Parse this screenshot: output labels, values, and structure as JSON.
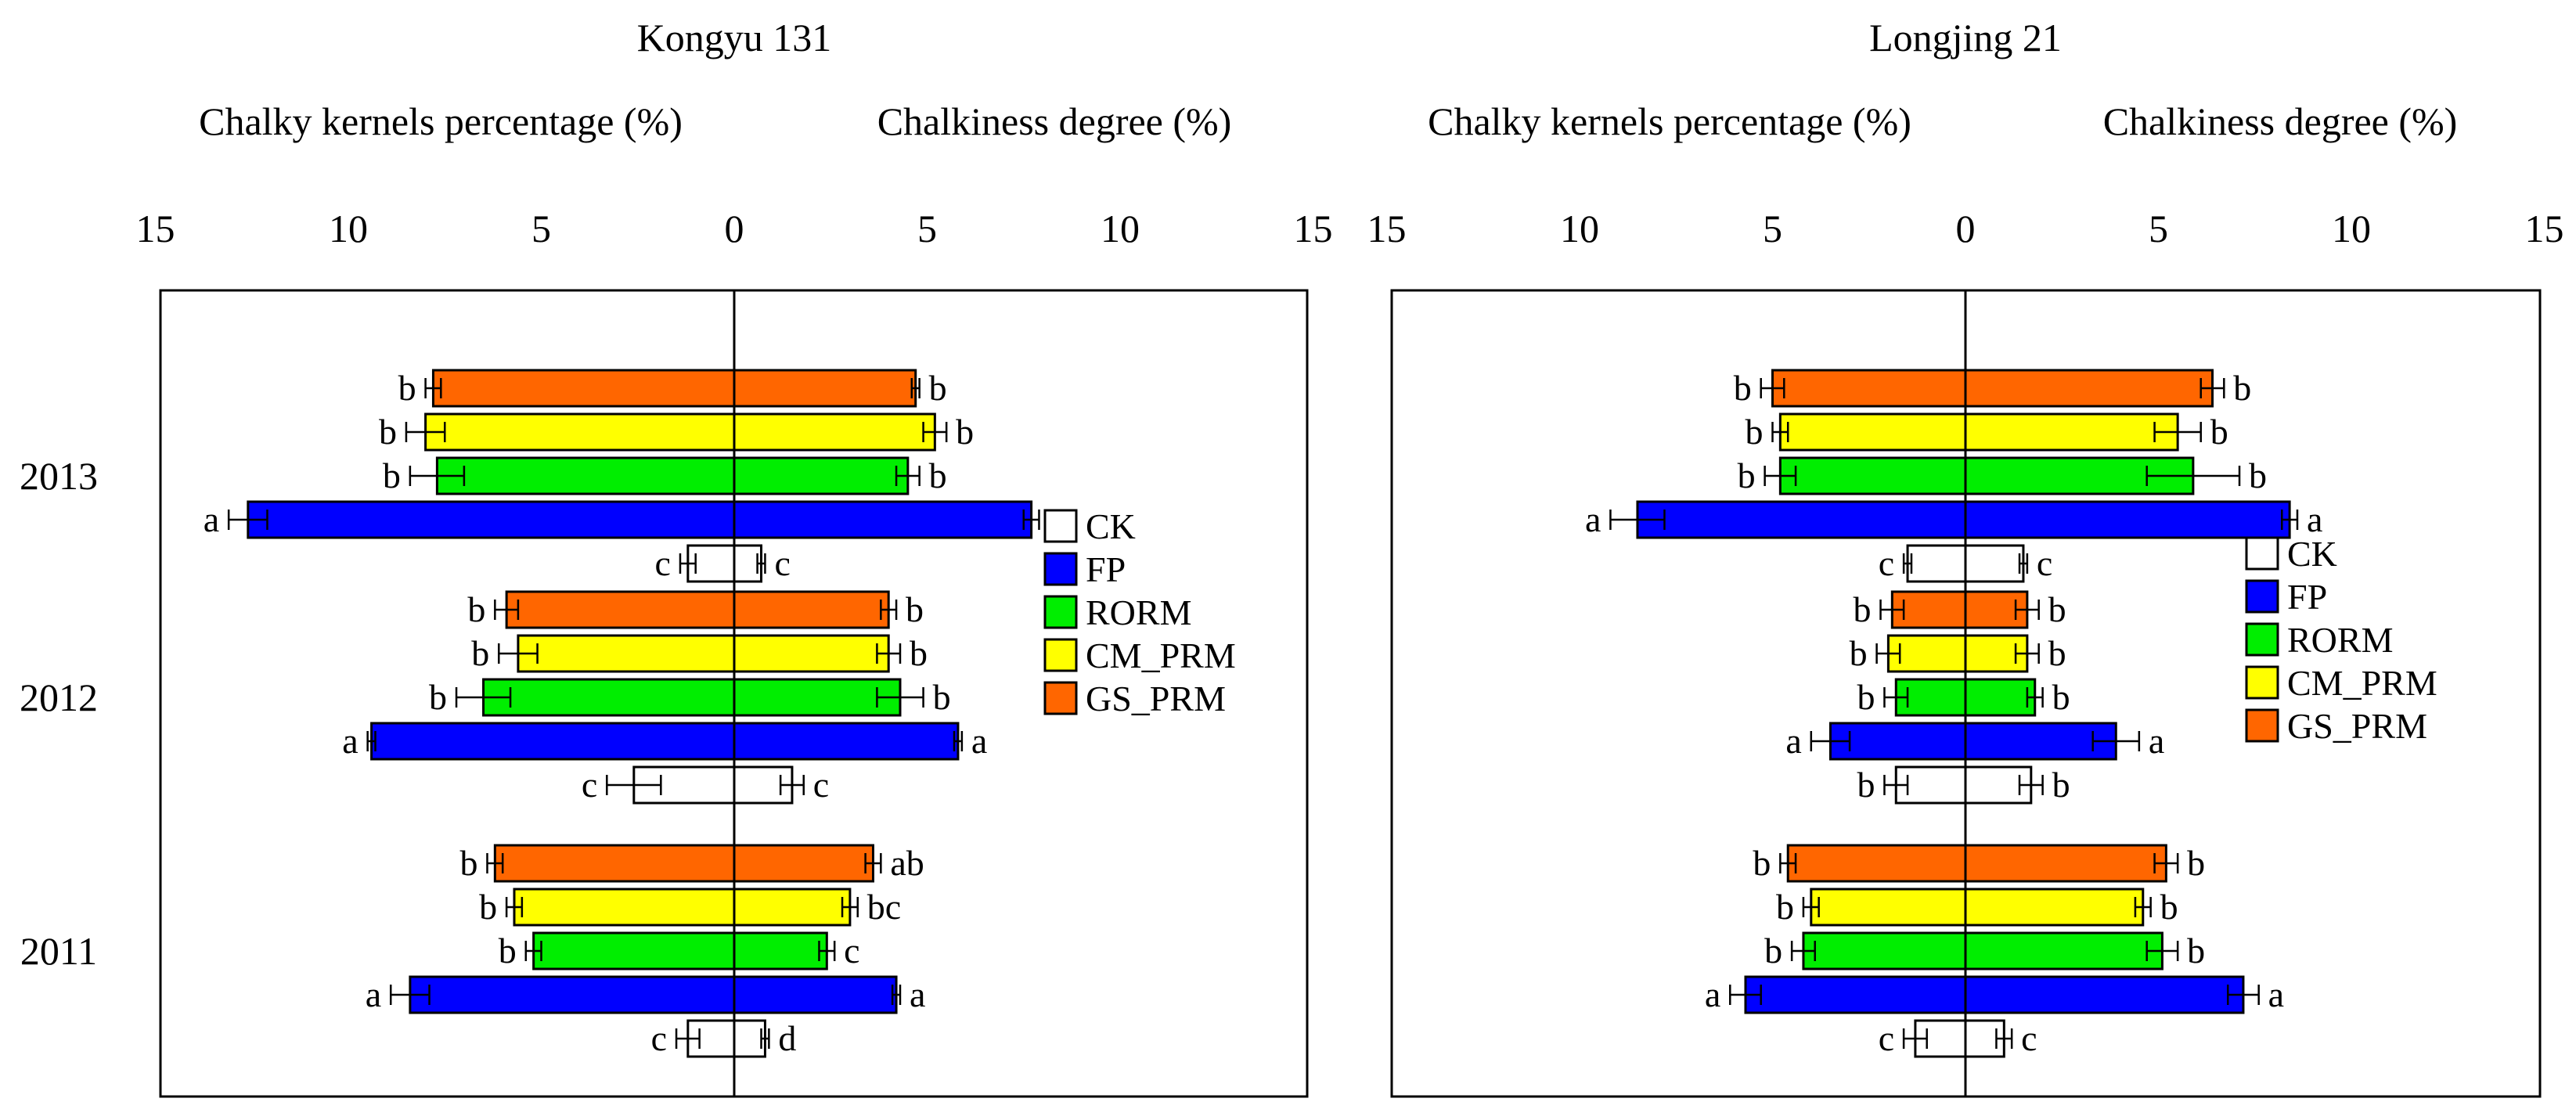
{
  "figure": {
    "legend": {
      "items": [
        {
          "key": "CK",
          "label": "CK",
          "color": "#ffffff"
        },
        {
          "key": "FP",
          "label": "FP",
          "color": "#0000ff"
        },
        {
          "key": "RORM",
          "label": "RORM",
          "color": "#00ee00"
        },
        {
          "key": "CM_PRM",
          "label": "CM_PRM",
          "color": "#ffff00"
        },
        {
          "key": "GS_PRM",
          "label": "GS_PRM",
          "color": "#ff6600"
        }
      ]
    }
  },
  "chart_data": [
    {
      "type": "bar",
      "orientation": "horizontal-butterfly",
      "title": "Kongyu 131",
      "left_axis_label": "Chalky kernels percentage (%)",
      "right_axis_label": "Chalkiness degree (%)",
      "xlim": [
        -15,
        15
      ],
      "ticks": [
        15,
        10,
        5,
        0,
        5,
        10,
        15
      ],
      "groups": [
        {
          "year": "2013",
          "bars": [
            {
              "treatment": "GS_PRM",
              "left": 7.8,
              "left_err": 0.2,
              "left_sig": "b",
              "right": 4.7,
              "right_err": 0.1,
              "right_sig": "b"
            },
            {
              "treatment": "CM_PRM",
              "left": 8.0,
              "left_err": 0.5,
              "left_sig": "b",
              "right": 5.2,
              "right_err": 0.3,
              "right_sig": "b"
            },
            {
              "treatment": "RORM",
              "left": 7.7,
              "left_err": 0.7,
              "left_sig": "b",
              "right": 4.5,
              "right_err": 0.3,
              "right_sig": "b"
            },
            {
              "treatment": "FP",
              "left": 12.6,
              "left_err": 0.5,
              "left_sig": "a",
              "right": 7.7,
              "right_err": 0.2,
              "right_sig": "a"
            },
            {
              "treatment": "CK",
              "left": 1.2,
              "left_err": 0.2,
              "left_sig": "c",
              "right": 0.7,
              "right_err": 0.1,
              "right_sig": "c"
            }
          ]
        },
        {
          "year": "2012",
          "bars": [
            {
              "treatment": "GS_PRM",
              "left": 5.9,
              "left_err": 0.3,
              "left_sig": "b",
              "right": 4.0,
              "right_err": 0.2,
              "right_sig": "b"
            },
            {
              "treatment": "CM_PRM",
              "left": 5.6,
              "left_err": 0.5,
              "left_sig": "b",
              "right": 4.0,
              "right_err": 0.3,
              "right_sig": "b"
            },
            {
              "treatment": "RORM",
              "left": 6.5,
              "left_err": 0.7,
              "left_sig": "b",
              "right": 4.3,
              "right_err": 0.6,
              "right_sig": "b"
            },
            {
              "treatment": "FP",
              "left": 9.4,
              "left_err": 0.1,
              "left_sig": "a",
              "right": 5.8,
              "right_err": 0.1,
              "right_sig": "a"
            },
            {
              "treatment": "CK",
              "left": 2.6,
              "left_err": 0.7,
              "left_sig": "c",
              "right": 1.5,
              "right_err": 0.3,
              "right_sig": "c"
            }
          ]
        },
        {
          "year": "2011",
          "bars": [
            {
              "treatment": "GS_PRM",
              "left": 6.2,
              "left_err": 0.2,
              "left_sig": "b",
              "right": 3.6,
              "right_err": 0.2,
              "right_sig": "ab"
            },
            {
              "treatment": "CM_PRM",
              "left": 5.7,
              "left_err": 0.2,
              "left_sig": "b",
              "right": 3.0,
              "right_err": 0.2,
              "right_sig": "bc"
            },
            {
              "treatment": "RORM",
              "left": 5.2,
              "left_err": 0.2,
              "left_sig": "b",
              "right": 2.4,
              "right_err": 0.2,
              "right_sig": "c"
            },
            {
              "treatment": "FP",
              "left": 8.4,
              "left_err": 0.5,
              "left_sig": "a",
              "right": 4.2,
              "right_err": 0.1,
              "right_sig": "a"
            },
            {
              "treatment": "CK",
              "left": 1.2,
              "left_err": 0.3,
              "left_sig": "c",
              "right": 0.8,
              "right_err": 0.1,
              "right_sig": "d"
            }
          ]
        }
      ]
    },
    {
      "type": "bar",
      "orientation": "horizontal-butterfly",
      "title": "Longjing 21",
      "left_axis_label": "Chalky kernels percentage (%)",
      "right_axis_label": "Chalkiness degree (%)",
      "xlim": [
        -15,
        15
      ],
      "ticks": [
        15,
        10,
        5,
        0,
        5,
        10,
        15
      ],
      "groups": [
        {
          "year": "2013",
          "bars": [
            {
              "treatment": "GS_PRM",
              "left": 5.0,
              "left_err": 0.3,
              "left_sig": "b",
              "right": 6.4,
              "right_err": 0.3,
              "right_sig": "b"
            },
            {
              "treatment": "CM_PRM",
              "left": 4.8,
              "left_err": 0.2,
              "left_sig": "b",
              "right": 5.5,
              "right_err": 0.6,
              "right_sig": "b"
            },
            {
              "treatment": "RORM",
              "left": 4.8,
              "left_err": 0.4,
              "left_sig": "b",
              "right": 5.9,
              "right_err": 1.2,
              "right_sig": "b"
            },
            {
              "treatment": "FP",
              "left": 8.5,
              "left_err": 0.7,
              "left_sig": "a",
              "right": 8.4,
              "right_err": 0.2,
              "right_sig": "a"
            },
            {
              "treatment": "CK",
              "left": 1.5,
              "left_err": 0.1,
              "left_sig": "c",
              "right": 1.5,
              "right_err": 0.1,
              "right_sig": "c"
            }
          ]
        },
        {
          "year": "2012",
          "bars": [
            {
              "treatment": "GS_PRM",
              "left": 1.9,
              "left_err": 0.3,
              "left_sig": "b",
              "right": 1.6,
              "right_err": 0.3,
              "right_sig": "b"
            },
            {
              "treatment": "CM_PRM",
              "left": 2.0,
              "left_err": 0.3,
              "left_sig": "b",
              "right": 1.6,
              "right_err": 0.3,
              "right_sig": "b"
            },
            {
              "treatment": "RORM",
              "left": 1.8,
              "left_err": 0.3,
              "left_sig": "b",
              "right": 1.8,
              "right_err": 0.2,
              "right_sig": "b"
            },
            {
              "treatment": "FP",
              "left": 3.5,
              "left_err": 0.5,
              "left_sig": "a",
              "right": 3.9,
              "right_err": 0.6,
              "right_sig": "a"
            },
            {
              "treatment": "CK",
              "left": 1.8,
              "left_err": 0.3,
              "left_sig": "b",
              "right": 1.7,
              "right_err": 0.3,
              "right_sig": "b"
            }
          ]
        },
        {
          "year": "2011",
          "bars": [
            {
              "treatment": "GS_PRM",
              "left": 4.6,
              "left_err": 0.2,
              "left_sig": "b",
              "right": 5.2,
              "right_err": 0.3,
              "right_sig": "b"
            },
            {
              "treatment": "CM_PRM",
              "left": 4.0,
              "left_err": 0.2,
              "left_sig": "b",
              "right": 4.6,
              "right_err": 0.2,
              "right_sig": "b"
            },
            {
              "treatment": "RORM",
              "left": 4.2,
              "left_err": 0.3,
              "left_sig": "b",
              "right": 5.1,
              "right_err": 0.4,
              "right_sig": "b"
            },
            {
              "treatment": "FP",
              "left": 5.7,
              "left_err": 0.4,
              "left_sig": "a",
              "right": 7.2,
              "right_err": 0.4,
              "right_sig": "a"
            },
            {
              "treatment": "CK",
              "left": 1.3,
              "left_err": 0.3,
              "left_sig": "c",
              "right": 1.0,
              "right_err": 0.2,
              "right_sig": "c"
            }
          ]
        }
      ]
    }
  ]
}
